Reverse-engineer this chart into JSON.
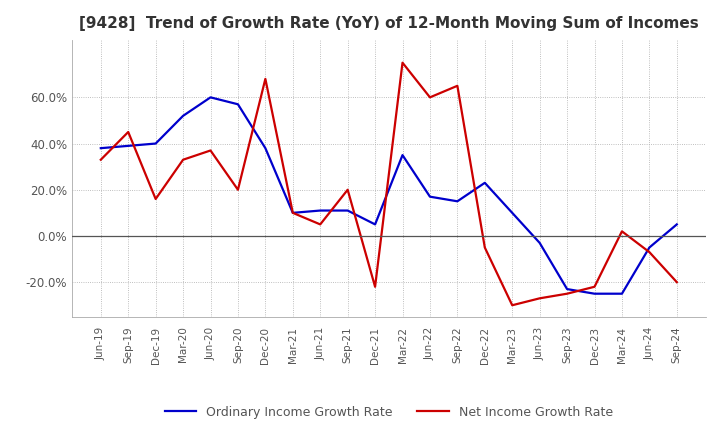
{
  "title": "[9428]  Trend of Growth Rate (YoY) of 12-Month Moving Sum of Incomes",
  "title_fontsize": 11,
  "ylim": [
    -35,
    85
  ],
  "yticks": [
    -20.0,
    0.0,
    20.0,
    40.0,
    60.0
  ],
  "ytick_labels": [
    "-20.0%",
    "0.0%",
    "20.0%",
    "40.0%",
    "60.0%"
  ],
  "x_labels": [
    "Jun-19",
    "Sep-19",
    "Dec-19",
    "Mar-20",
    "Jun-20",
    "Sep-20",
    "Dec-20",
    "Mar-21",
    "Jun-21",
    "Sep-21",
    "Dec-21",
    "Mar-22",
    "Jun-22",
    "Sep-22",
    "Dec-22",
    "Mar-23",
    "Jun-23",
    "Sep-23",
    "Dec-23",
    "Mar-24",
    "Jun-24",
    "Sep-24"
  ],
  "ordinary_income": [
    38.0,
    39.0,
    40.0,
    52.0,
    60.0,
    57.0,
    38.0,
    10.0,
    11.0,
    11.0,
    5.0,
    35.0,
    17.0,
    15.0,
    23.0,
    10.0,
    -3.0,
    -23.0,
    -25.0,
    -25.0,
    -5.0,
    5.0
  ],
  "net_income": [
    33.0,
    45.0,
    16.0,
    33.0,
    37.0,
    20.0,
    68.0,
    10.0,
    5.0,
    20.0,
    -22.0,
    75.0,
    60.0,
    65.0,
    -5.0,
    -30.0,
    -27.0,
    -25.0,
    -22.0,
    2.0,
    -7.0,
    -20.0
  ],
  "ordinary_color": "#0000cc",
  "net_color": "#cc0000",
  "line_width": 1.6,
  "legend_labels": [
    "Ordinary Income Growth Rate",
    "Net Income Growth Rate"
  ],
  "background_color": "#ffffff",
  "grid_color": "#aaaaaa",
  "zero_line_color": "#555555"
}
